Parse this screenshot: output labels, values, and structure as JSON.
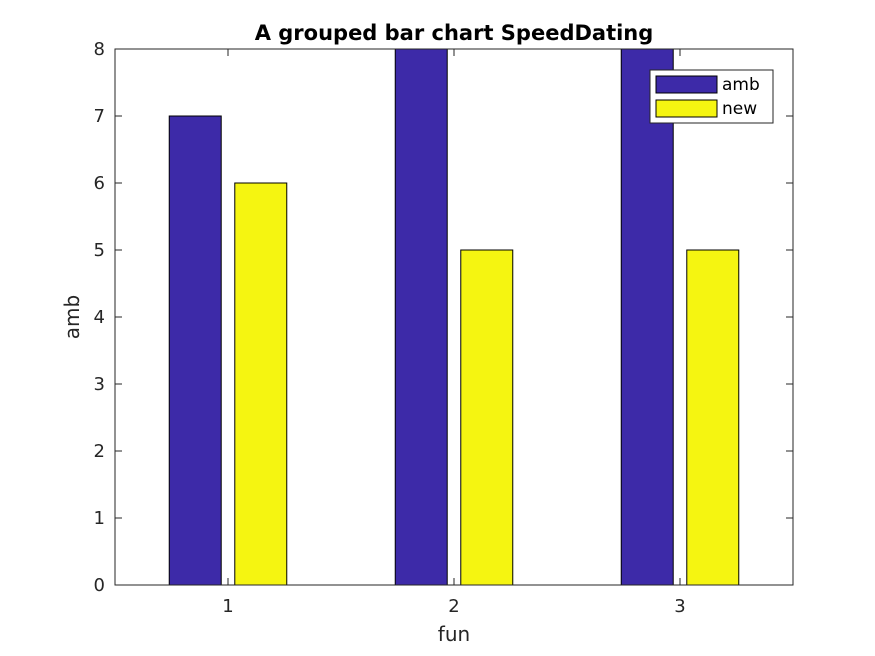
{
  "chart_data": {
    "type": "bar",
    "title": "A grouped bar chart SpeedDating",
    "xlabel": "fun",
    "ylabel": "amb",
    "categories": [
      "1",
      "2",
      "3"
    ],
    "series": [
      {
        "name": "amb",
        "values": [
          7,
          8,
          8
        ],
        "color": "#3D2AA8"
      },
      {
        "name": "new",
        "values": [
          6,
          5,
          5
        ],
        "color": "#F5F511"
      }
    ],
    "ylim": [
      0,
      8
    ],
    "yticks": [
      "0",
      "1",
      "2",
      "3",
      "4",
      "5",
      "6",
      "7",
      "8"
    ],
    "grid": false,
    "legend": "top-right"
  }
}
